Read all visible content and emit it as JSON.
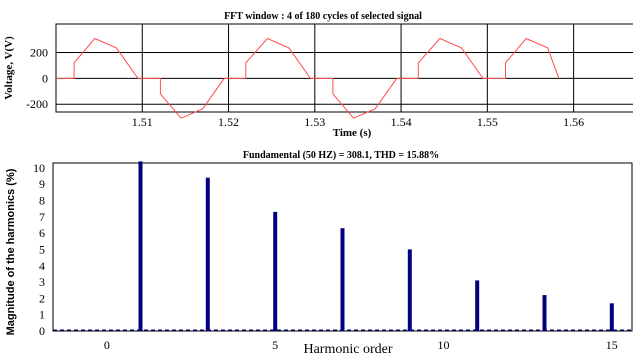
{
  "chart_data": [
    {
      "type": "line",
      "title": "FFT window : 4 of 180 cycles of selected signal",
      "xlabel": "Time (s)",
      "ylabel": "Voltage, V(V)",
      "xlim": [
        1.5,
        1.567
      ],
      "ylim": [
        -260,
        420
      ],
      "x_ticks": [
        "1.51",
        "1.52",
        "1.53",
        "1.54",
        "1.55",
        "1.56"
      ],
      "y_ticks": [
        "200",
        "0",
        "-200"
      ],
      "grid": true,
      "series_color": "#ff4d4d",
      "series": [
        {
          "x": [
            1.5,
            1.5021,
            1.5021,
            1.5045,
            1.507,
            1.5095,
            1.5121,
            1.5121,
            1.5145,
            1.517,
            1.5195,
            1.522,
            1.522,
            1.5245,
            1.527,
            1.5295,
            1.5321,
            1.5321,
            1.5345,
            1.537,
            1.5395,
            1.542,
            1.542,
            1.5445,
            1.547,
            1.5495,
            1.5521,
            1.5521,
            1.5545,
            1.557,
            1.5583
          ],
          "y": [
            0,
            0,
            120,
            308,
            235,
            0,
            0,
            -120,
            -308,
            -235,
            0,
            0,
            120,
            308,
            235,
            0,
            0,
            -120,
            -308,
            -235,
            0,
            0,
            120,
            308,
            235,
            0,
            0,
            120,
            308,
            235,
            0
          ]
        }
      ]
    },
    {
      "type": "bar",
      "title": "Fundamental (50 HZ) = 308.1, THD = 15.88%",
      "xlabel": "Harmonic order",
      "ylabel": "Magnitude of the harmonics (%)",
      "xlim": [
        -1.6,
        15.6
      ],
      "ylim": [
        0,
        10.3
      ],
      "x_ticks": [
        "0",
        "5",
        "10",
        "15"
      ],
      "y_ticks": [
        "0",
        "1",
        "2",
        "3",
        "4",
        "5",
        "6",
        "7",
        "8",
        "9",
        "10"
      ],
      "bar_color": "#000080",
      "categories": [
        1,
        3,
        5,
        7,
        9,
        11,
        13,
        15
      ],
      "values": [
        10.4,
        9.4,
        7.3,
        6.3,
        5.0,
        3.1,
        2.2,
        1.7
      ]
    }
  ]
}
